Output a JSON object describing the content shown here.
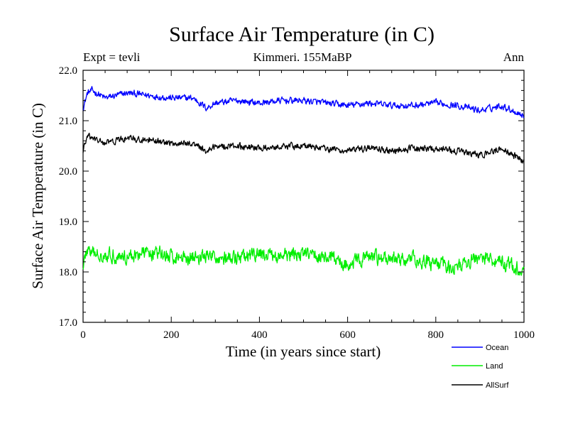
{
  "chart_data": {
    "type": "line",
    "title": "Surface Air Temperature (in C)",
    "subtitle_left": "Expt = tevli",
    "subtitle_center": "Kimmeri. 155MaBP",
    "subtitle_right": "Ann",
    "xlabel": "Time (in years since start)",
    "ylabel": "Surface Air Temperature (in C)",
    "xlim": [
      0,
      1000
    ],
    "ylim": [
      17.0,
      22.0
    ],
    "xticks": [
      0,
      200,
      400,
      600,
      800,
      1000
    ],
    "yticks": [
      "17.0",
      "18.0",
      "19.0",
      "20.0",
      "21.0",
      "22.0"
    ],
    "legend_position": "bottom-right",
    "series": [
      {
        "name": "Ocean",
        "color": "#0000ff",
        "anchors_x": [
          0,
          10,
          20,
          50,
          100,
          150,
          200,
          250,
          280,
          300,
          350,
          400,
          450,
          500,
          550,
          600,
          650,
          700,
          750,
          800,
          850,
          900,
          950,
          1000
        ],
        "anchors_y": [
          21.25,
          21.55,
          21.6,
          21.45,
          21.55,
          21.5,
          21.45,
          21.45,
          21.25,
          21.35,
          21.4,
          21.35,
          21.4,
          21.4,
          21.35,
          21.3,
          21.35,
          21.3,
          21.3,
          21.35,
          21.3,
          21.2,
          21.3,
          21.1
        ],
        "noise": 0.1
      },
      {
        "name": "Land",
        "color": "#00ee00",
        "anchors_x": [
          0,
          10,
          20,
          50,
          100,
          150,
          200,
          250,
          300,
          350,
          400,
          450,
          500,
          550,
          600,
          650,
          700,
          750,
          800,
          850,
          900,
          950,
          1000
        ],
        "anchors_y": [
          18.15,
          18.45,
          18.35,
          18.35,
          18.3,
          18.4,
          18.3,
          18.3,
          18.3,
          18.25,
          18.35,
          18.3,
          18.35,
          18.3,
          18.15,
          18.3,
          18.25,
          18.25,
          18.15,
          18.1,
          18.3,
          18.2,
          18.0
        ],
        "noise": 0.22
      },
      {
        "name": "AllSurf",
        "color": "#000000",
        "anchors_x": [
          0,
          10,
          20,
          50,
          100,
          150,
          200,
          250,
          280,
          300,
          350,
          400,
          450,
          500,
          550,
          600,
          650,
          700,
          750,
          800,
          850,
          900,
          950,
          1000
        ],
        "anchors_y": [
          20.4,
          20.7,
          20.65,
          20.55,
          20.65,
          20.6,
          20.55,
          20.55,
          20.4,
          20.5,
          20.5,
          20.45,
          20.5,
          20.5,
          20.45,
          20.4,
          20.45,
          20.4,
          20.45,
          20.45,
          20.4,
          20.3,
          20.45,
          20.2
        ],
        "noise": 0.1
      }
    ]
  }
}
